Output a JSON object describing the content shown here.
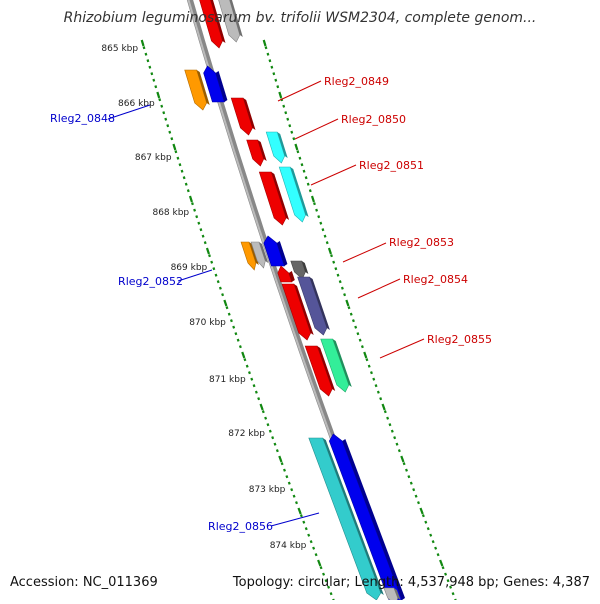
{
  "title": "Rhizobium leguminosarum bv. trifolii WSM2304, complete genom...",
  "footer": {
    "accession": "Accession: NC_011369",
    "summary": "Topology: circular; Length: 4,537,948 bp; Genes: 4,387"
  },
  "scale": {
    "ticks": [
      "865 kbp",
      "866 kbp",
      "867 kbp",
      "868 kbp",
      "869 kbp",
      "870 kbp",
      "871 kbp",
      "872 kbp",
      "873 kbp",
      "874 kbp"
    ]
  },
  "labels": [
    {
      "id": "Rleg2_0848",
      "color": "#0000cc"
    },
    {
      "id": "Rleg2_0849",
      "color": "#cc0000"
    },
    {
      "id": "Rleg2_0850",
      "color": "#cc0000"
    },
    {
      "id": "Rleg2_0851",
      "color": "#cc0000"
    },
    {
      "id": "Rleg2_0852",
      "color": "#0000cc"
    },
    {
      "id": "Rleg2_0853",
      "color": "#cc0000"
    },
    {
      "id": "Rleg2_0854",
      "color": "#cc0000"
    },
    {
      "id": "Rleg2_0855",
      "color": "#cc0000"
    },
    {
      "id": "Rleg2_0856",
      "color": "#0000cc"
    }
  ],
  "colors": {
    "backbone": "#888888",
    "tick": "#118811",
    "red": "#ee0000",
    "blue": "#0000ee",
    "cyan": "#33ffff",
    "orange": "#ff9900",
    "grey": "#bbbbbb",
    "teal": "#33cccc",
    "slate": "#555599",
    "green": "#33ee99",
    "dark": "#666666"
  }
}
